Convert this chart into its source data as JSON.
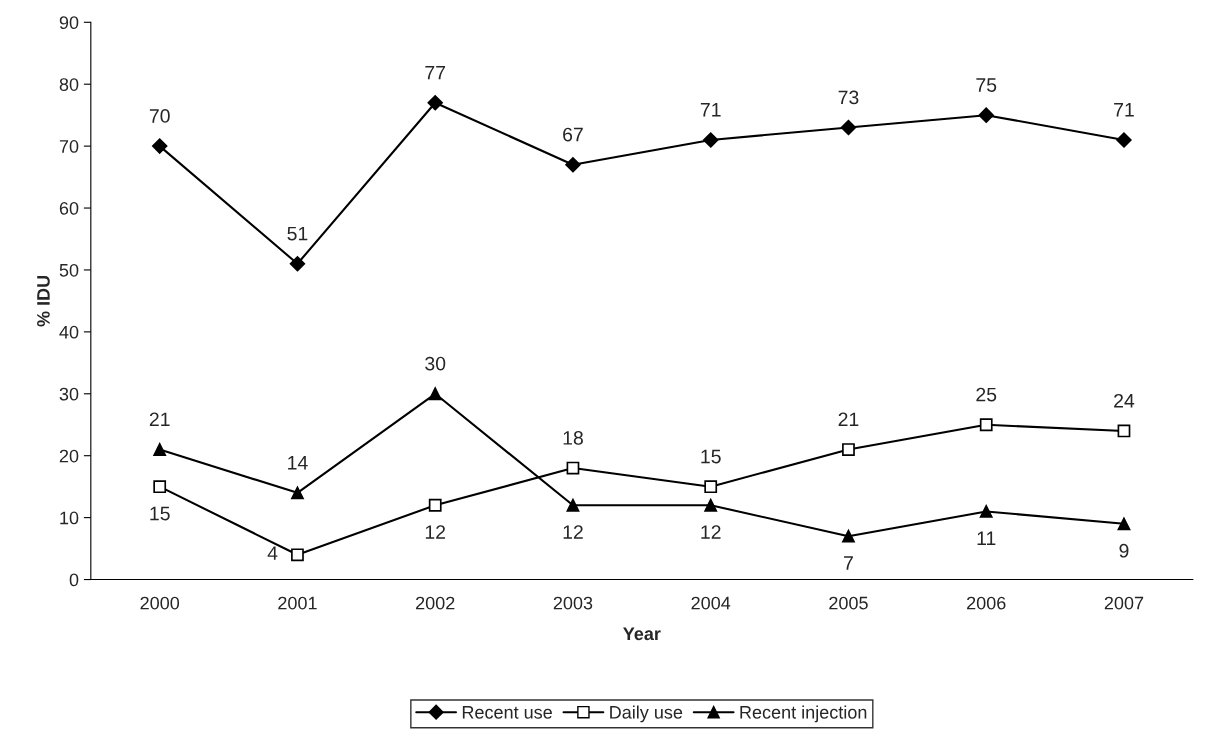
{
  "chart_data": {
    "type": "line",
    "xlabel": "Year",
    "ylabel": "% IDU",
    "categories": [
      "2000",
      "2001",
      "2002",
      "2003",
      "2004",
      "2005",
      "2006",
      "2007"
    ],
    "series": [
      {
        "name": "Recent use",
        "color": "#000000",
        "marker": "diamond",
        "values": [
          70,
          51,
          77,
          67,
          71,
          73,
          75,
          71
        ]
      },
      {
        "name": "Daily use",
        "color": "#000000",
        "marker": "square",
        "values": [
          15,
          4,
          12,
          18,
          15,
          21,
          25,
          24
        ]
      },
      {
        "name": "Recent injection",
        "color": "#000000",
        "marker": "triangle",
        "values": [
          21,
          14,
          30,
          12,
          12,
          7,
          11,
          9
        ]
      }
    ],
    "ylim": [
      0,
      90
    ],
    "yticks": [
      0,
      10,
      20,
      30,
      40,
      50,
      60,
      70,
      80,
      90
    ],
    "data_labels": true,
    "grid": false,
    "legend": "bottom",
    "line_style": "solid"
  }
}
